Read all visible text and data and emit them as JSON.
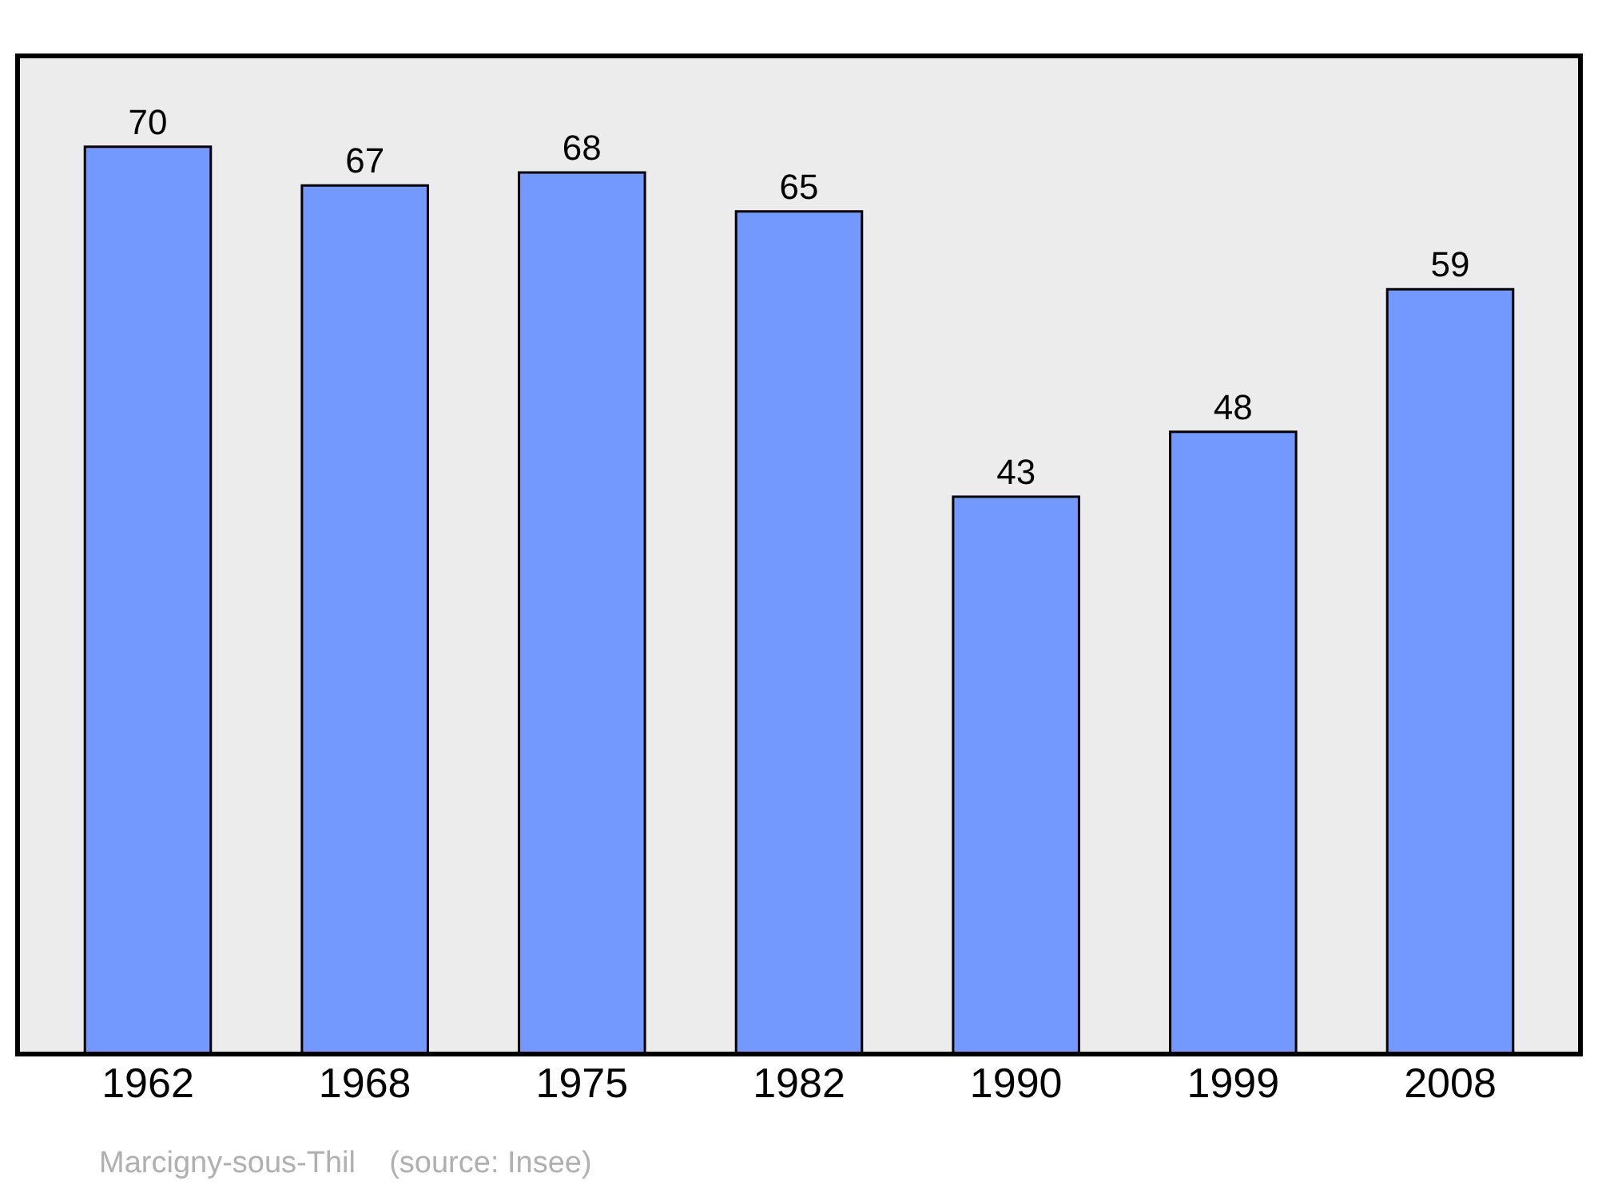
{
  "chart_data": {
    "type": "bar",
    "categories": [
      "1962",
      "1968",
      "1975",
      "1982",
      "1990",
      "1999",
      "2008"
    ],
    "values": [
      70,
      67,
      68,
      65,
      43,
      48,
      59
    ],
    "color": "#7399ff",
    "data_labels": true,
    "grid": false,
    "legend": false,
    "annotations": [
      "Marcigny-sous-Thil    (source: Insee)"
    ]
  }
}
